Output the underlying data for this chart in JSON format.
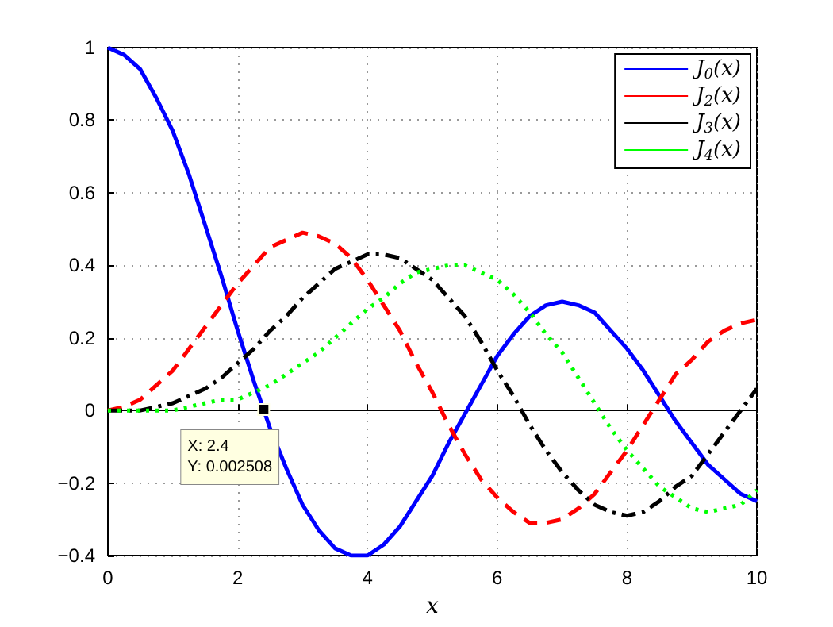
{
  "chart_data": {
    "type": "line",
    "xlabel": "x",
    "x": [
      0,
      0.25,
      0.5,
      0.75,
      1,
      1.25,
      1.5,
      1.75,
      2,
      2.25,
      2.5,
      2.75,
      3,
      3.25,
      3.5,
      3.75,
      4,
      4.25,
      4.5,
      4.75,
      5,
      5.25,
      5.5,
      5.75,
      6,
      6.25,
      6.5,
      6.75,
      7,
      7.25,
      7.5,
      7.75,
      8,
      8.25,
      8.5,
      8.75,
      9,
      9.25,
      9.5,
      9.75,
      10
    ],
    "series": [
      {
        "name": "J$_{0}$(x)",
        "color": "#0000ff",
        "line_style": "solid",
        "values": [
          1,
          0.98,
          0.94,
          0.86,
          0.77,
          0.65,
          0.51,
          0.37,
          0.22,
          0.08,
          -0.05,
          -0.16,
          -0.26,
          -0.33,
          -0.38,
          -0.4,
          -0.4,
          -0.37,
          -0.32,
          -0.25,
          -0.18,
          -0.09,
          -0.01,
          0.07,
          0.15,
          0.21,
          0.26,
          0.29,
          0.3,
          0.29,
          0.27,
          0.22,
          0.17,
          0.11,
          0.04,
          -0.03,
          -0.09,
          -0.15,
          -0.19,
          -0.23,
          -0.25
        ]
      },
      {
        "name": "J$_{2}$(x)",
        "color": "#ff0000",
        "line_style": "dashed",
        "values": [
          0,
          0.01,
          0.03,
          0.07,
          0.11,
          0.17,
          0.23,
          0.29,
          0.35,
          0.4,
          0.45,
          0.47,
          0.49,
          0.48,
          0.46,
          0.42,
          0.36,
          0.29,
          0.22,
          0.13,
          0.05,
          -0.04,
          -0.12,
          -0.19,
          -0.24,
          -0.28,
          -0.31,
          -0.31,
          -0.3,
          -0.27,
          -0.23,
          -0.17,
          -0.11,
          -0.04,
          0.03,
          0.1,
          0.14,
          0.19,
          0.22,
          0.24,
          0.25
        ]
      },
      {
        "name": "J$_{3}$(x)",
        "color": "#000000",
        "line_style": "dashdot",
        "values": [
          0,
          0,
          0,
          0.01,
          0.02,
          0.04,
          0.06,
          0.09,
          0.13,
          0.17,
          0.22,
          0.26,
          0.31,
          0.35,
          0.39,
          0.41,
          0.43,
          0.43,
          0.42,
          0.39,
          0.36,
          0.31,
          0.26,
          0.19,
          0.11,
          0.04,
          -0.04,
          -0.11,
          -0.17,
          -0.22,
          -0.26,
          -0.28,
          -0.29,
          -0.28,
          -0.25,
          -0.21,
          -0.18,
          -0.12,
          -0.06,
          0,
          0.06
        ]
      },
      {
        "name": "J$_{4}$(x)",
        "color": "#00ff00",
        "line_style": "dotted",
        "values": [
          0,
          0,
          0,
          0,
          0,
          0.01,
          0.02,
          0.03,
          0.03,
          0.05,
          0.07,
          0.1,
          0.13,
          0.16,
          0.2,
          0.24,
          0.28,
          0.31,
          0.35,
          0.38,
          0.39,
          0.4,
          0.4,
          0.38,
          0.36,
          0.32,
          0.27,
          0.21,
          0.16,
          0.09,
          0.02,
          -0.05,
          -0.11,
          -0.16,
          -0.21,
          -0.24,
          -0.27,
          -0.28,
          -0.27,
          -0.26,
          -0.22
        ]
      }
    ],
    "xlim": [
      0,
      10
    ],
    "xticks": [
      0,
      2,
      4,
      6,
      8,
      10
    ],
    "ylim": [
      -0.4,
      1
    ],
    "yticks": [
      -0.4,
      -0.2,
      0,
      0.2,
      0.4,
      0.6,
      0.8,
      1
    ],
    "annotations": [
      {
        "text": "X: 2.4\nY: 0.002508",
        "x": 2.4,
        "y": 0.002508
      }
    ],
    "grid": true,
    "legend": "top right",
    "marker": "none"
  }
}
